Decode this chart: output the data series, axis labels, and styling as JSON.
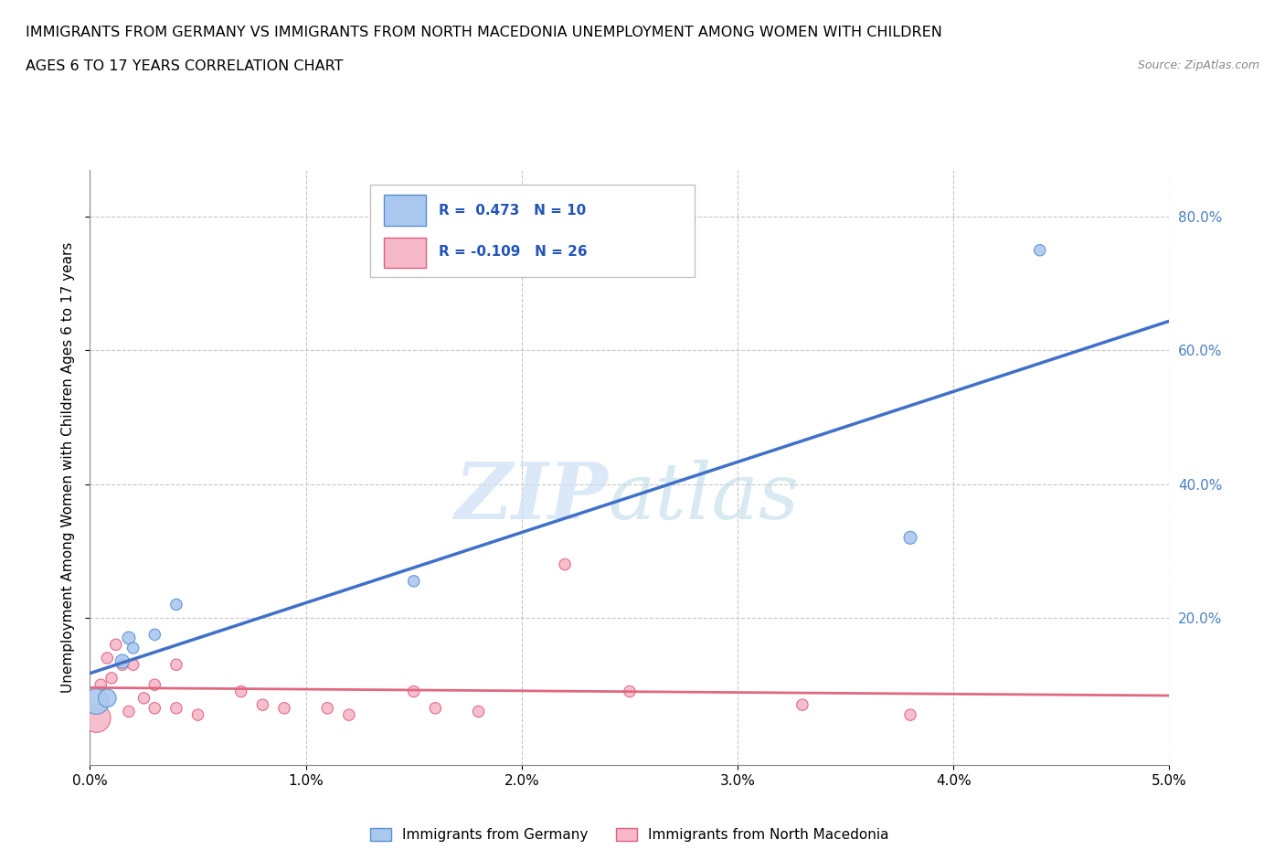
{
  "title_line1": "IMMIGRANTS FROM GERMANY VS IMMIGRANTS FROM NORTH MACEDONIA UNEMPLOYMENT AMONG WOMEN WITH CHILDREN",
  "title_line2": "AGES 6 TO 17 YEARS CORRELATION CHART",
  "source": "Source: ZipAtlas.com",
  "ylabel": "Unemployment Among Women with Children Ages 6 to 17 years",
  "xlim": [
    0.0,
    0.05
  ],
  "ylim": [
    -0.02,
    0.87
  ],
  "xticks": [
    0.0,
    0.01,
    0.02,
    0.03,
    0.04,
    0.05
  ],
  "xtick_labels": [
    "0.0%",
    "1.0%",
    "2.0%",
    "3.0%",
    "4.0%",
    "5.0%"
  ],
  "yticks": [
    0.2,
    0.4,
    0.6,
    0.8
  ],
  "ytick_labels": [
    "20.0%",
    "40.0%",
    "60.0%",
    "80.0%"
  ],
  "germany_R": 0.473,
  "germany_N": 10,
  "macedonia_R": -0.109,
  "macedonia_N": 26,
  "germany_color": "#aac8ee",
  "macedonia_color": "#f5b8c8",
  "germany_edge_color": "#5590d0",
  "macedonia_edge_color": "#e06080",
  "germany_line_color": "#4070c8",
  "macedonia_line_color": "#e06880",
  "watermark_zip": "ZIP",
  "watermark_atlas": "atlas",
  "germany_x": [
    0.0003,
    0.0008,
    0.0015,
    0.0018,
    0.002,
    0.003,
    0.004,
    0.015,
    0.038,
    0.044
  ],
  "germany_y": [
    0.075,
    0.08,
    0.135,
    0.17,
    0.155,
    0.175,
    0.22,
    0.255,
    0.32,
    0.75
  ],
  "germany_sizes": [
    400,
    200,
    120,
    100,
    80,
    80,
    80,
    80,
    100,
    80
  ],
  "macedonia_x": [
    0.0003,
    0.0005,
    0.0008,
    0.001,
    0.0012,
    0.0015,
    0.0018,
    0.002,
    0.0025,
    0.003,
    0.003,
    0.004,
    0.004,
    0.005,
    0.007,
    0.008,
    0.009,
    0.011,
    0.012,
    0.015,
    0.016,
    0.018,
    0.022,
    0.025,
    0.033,
    0.038
  ],
  "macedonia_y": [
    0.05,
    0.1,
    0.14,
    0.11,
    0.16,
    0.13,
    0.06,
    0.13,
    0.08,
    0.1,
    0.065,
    0.13,
    0.065,
    0.055,
    0.09,
    0.07,
    0.065,
    0.065,
    0.055,
    0.09,
    0.065,
    0.06,
    0.28,
    0.09,
    0.07,
    0.055
  ],
  "macedonia_sizes": [
    500,
    80,
    80,
    80,
    80,
    80,
    80,
    80,
    80,
    80,
    80,
    80,
    80,
    80,
    80,
    80,
    80,
    80,
    80,
    80,
    80,
    80,
    80,
    80,
    80,
    80
  ],
  "background_color": "#ffffff",
  "grid_color": "#c8c8c8"
}
